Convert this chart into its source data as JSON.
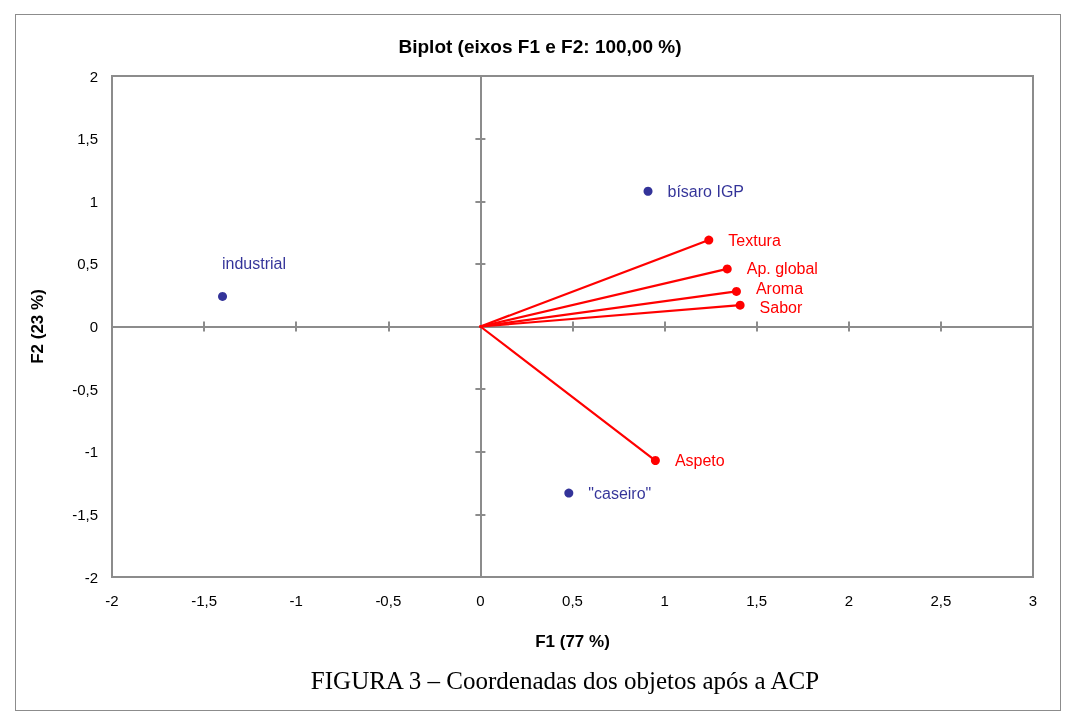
{
  "chart_data": {
    "type": "scatter",
    "title": "Biplot (eixos F1 e F2: 100,00 %)",
    "xlabel": "F1 (77 %)",
    "ylabel": "F2 (23 %)",
    "annotations": [
      "FIGURA 3 – Coordenadas dos objetos após a ACP"
    ],
    "xlim": [
      -2,
      3
    ],
    "xticks": [
      -2,
      {
        "value": -1.5,
        "label": "-1,5"
      },
      -1,
      {
        "value": -0.5,
        "label": "-0,5"
      },
      0,
      {
        "value": 0.5,
        "label": "0,5"
      },
      1,
      {
        "value": 1.5,
        "label": "1,5"
      },
      2,
      {
        "value": 2.5,
        "label": "2,5"
      },
      3
    ],
    "ylim": [
      -2,
      2
    ],
    "yticks": [
      -2,
      {
        "value": -1.5,
        "label": "-1,5"
      },
      -1,
      {
        "value": -0.5,
        "label": "-0,5"
      },
      0,
      {
        "value": 0.5,
        "label": "0,5"
      },
      1,
      {
        "value": 1.5,
        "label": "1,5"
      },
      2
    ],
    "marker": "circle",
    "line_style": "solid",
    "series": [
      {
        "name": "industrial",
        "color": "#000080",
        "x": [
          -1.4
        ],
        "values": [
          0.24
        ]
      },
      {
        "name": "bísaro IGP",
        "color": "#000080",
        "x": [
          0.91
        ],
        "values": [
          1.08
        ]
      },
      {
        "name": "\"caseiro\"",
        "color": "#000080",
        "x": [
          0.48
        ],
        "values": [
          -1.33
        ]
      },
      {
        "name": "Textura",
        "type": "line",
        "color": "#ff0000",
        "x": [
          0,
          1.24
        ],
        "values": [
          0,
          0.69
        ]
      },
      {
        "name": "Ap. global",
        "type": "line",
        "color": "#ff0000",
        "x": [
          0,
          1.34
        ],
        "values": [
          0,
          0.46
        ]
      },
      {
        "name": "Aroma",
        "type": "line",
        "color": "#ff0000",
        "x": [
          0,
          1.39
        ],
        "values": [
          0,
          0.28
        ]
      },
      {
        "name": "Sabor",
        "type": "line",
        "color": "#ff0000",
        "x": [
          0,
          1.41
        ],
        "values": [
          0,
          0.17
        ]
      },
      {
        "name": "Aspeto",
        "type": "line",
        "color": "#ff0000",
        "x": [
          0,
          0.95
        ],
        "values": [
          0,
          -1.07
        ]
      }
    ]
  }
}
